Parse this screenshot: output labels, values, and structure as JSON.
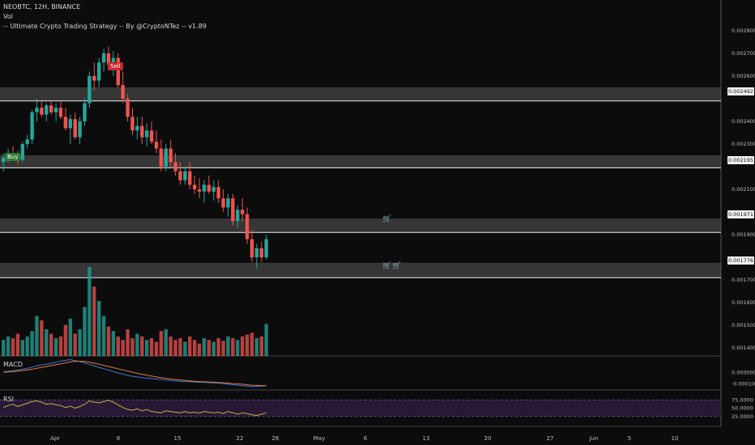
{
  "header": {
    "symbol_line": "NEOBTC, 12H, BINANCE",
    "vol_label": "Vol",
    "strategy_label": "-- Ultimate Crypto Trading Strategy -- By @CryptoNTez -- v1.89"
  },
  "signals": {
    "buy_label": "Buy",
    "sell_label": "Sell"
  },
  "colors": {
    "up": "#26a69a",
    "down": "#ef5350",
    "zone": "#5a5a5a",
    "macd_line": "#3a7bd5",
    "signal_line": "#e07b39",
    "rsi_line": "#c8b040",
    "rsi_band": "#2a1a3a"
  },
  "price_levels": [
    "0.002492",
    "0.002195",
    "0.001971",
    "0.001776"
  ],
  "cart_icons": [
    "cart-icon",
    "cart-icon",
    "cart-icon"
  ],
  "panes": {
    "macd_label": "MACD",
    "rsi_label": "RSI"
  },
  "chart_data": {
    "type": "candlestick",
    "y_ticks": [
      "0.002800",
      "0.002700",
      "0.002600",
      "0.002400",
      "0.002300",
      "0.002100",
      "0.001900",
      "0.001700",
      "0.001600",
      "0.001500",
      "0.001400"
    ],
    "macd_ticks": [
      "0.000000",
      "-0.000100"
    ],
    "rsi_ticks": [
      "75.0000",
      "50.0000",
      "25.0000"
    ],
    "x_labels": [
      "Apr",
      "8",
      "15",
      "22",
      "26",
      "May",
      "6",
      "13",
      "20",
      "27",
      "Jun",
      "5",
      "10"
    ],
    "ylim": [
      0.0014,
      0.0029
    ],
    "zones": [
      [
        0.00249,
        0.00255
      ],
      [
        0.002195,
        0.00225
      ],
      [
        0.00191,
        0.001971
      ],
      [
        0.00171,
        0.001776
      ]
    ],
    "candles": [
      [
        0.00222,
        0.00226,
        0.00218,
        0.00224
      ],
      [
        0.00224,
        0.00228,
        0.00222,
        0.00226
      ],
      [
        0.00226,
        0.00229,
        0.00224,
        0.00225
      ],
      [
        0.00225,
        0.00227,
        0.00221,
        0.00223
      ],
      [
        0.00223,
        0.00231,
        0.00222,
        0.0023
      ],
      [
        0.0023,
        0.00234,
        0.00228,
        0.00232
      ],
      [
        0.00232,
        0.00245,
        0.0023,
        0.00244
      ],
      [
        0.00244,
        0.0025,
        0.0024,
        0.00246
      ],
      [
        0.00246,
        0.00249,
        0.00242,
        0.00243
      ],
      [
        0.00243,
        0.00248,
        0.0024,
        0.00247
      ],
      [
        0.00247,
        0.00249,
        0.00243,
        0.00244
      ],
      [
        0.00244,
        0.00248,
        0.0024,
        0.00246
      ],
      [
        0.00246,
        0.00249,
        0.00241,
        0.00242
      ],
      [
        0.00242,
        0.00246,
        0.00236,
        0.00237
      ],
      [
        0.00237,
        0.00243,
        0.0023,
        0.00241
      ],
      [
        0.00241,
        0.00244,
        0.00232,
        0.00233
      ],
      [
        0.00233,
        0.00242,
        0.0023,
        0.0024
      ],
      [
        0.0024,
        0.0025,
        0.00238,
        0.00248
      ],
      [
        0.00248,
        0.00262,
        0.00246,
        0.0026
      ],
      [
        0.0026,
        0.00266,
        0.00254,
        0.00258
      ],
      [
        0.00258,
        0.00268,
        0.00255,
        0.00266
      ],
      [
        0.00266,
        0.00272,
        0.00262,
        0.0027
      ],
      [
        0.0027,
        0.00273,
        0.00263,
        0.00265
      ],
      [
        0.00265,
        0.00271,
        0.0026,
        0.00268
      ],
      [
        0.00268,
        0.0027,
        0.00255,
        0.00256
      ],
      [
        0.00256,
        0.00262,
        0.00248,
        0.0025
      ],
      [
        0.0025,
        0.00252,
        0.0024,
        0.00242
      ],
      [
        0.00242,
        0.00246,
        0.00234,
        0.00236
      ],
      [
        0.00236,
        0.00242,
        0.00232,
        0.00238
      ],
      [
        0.00238,
        0.00242,
        0.0023,
        0.00233
      ],
      [
        0.00233,
        0.00239,
        0.00229,
        0.00236
      ],
      [
        0.00236,
        0.0024,
        0.0023,
        0.00231
      ],
      [
        0.00231,
        0.00236,
        0.00226,
        0.00228
      ],
      [
        0.00228,
        0.00232,
        0.00218,
        0.0022
      ],
      [
        0.0022,
        0.0023,
        0.00218,
        0.00228
      ],
      [
        0.00228,
        0.00232,
        0.0022,
        0.00222
      ],
      [
        0.00222,
        0.00226,
        0.00216,
        0.00218
      ],
      [
        0.00218,
        0.00222,
        0.00212,
        0.00214
      ],
      [
        0.00214,
        0.0022,
        0.00212,
        0.00218
      ],
      [
        0.00218,
        0.00222,
        0.0021,
        0.00212
      ],
      [
        0.00212,
        0.00216,
        0.00208,
        0.0021
      ],
      [
        0.0021,
        0.00215,
        0.00206,
        0.00209
      ],
      [
        0.00209,
        0.00214,
        0.00204,
        0.00212
      ],
      [
        0.00212,
        0.00216,
        0.00208,
        0.00209
      ],
      [
        0.00209,
        0.00214,
        0.00205,
        0.00211
      ],
      [
        0.00211,
        0.00214,
        0.00204,
        0.00206
      ],
      [
        0.00206,
        0.0021,
        0.002,
        0.00202
      ],
      [
        0.00202,
        0.00208,
        0.00198,
        0.00206
      ],
      [
        0.00206,
        0.00208,
        0.00194,
        0.00196
      ],
      [
        0.00196,
        0.00203,
        0.00193,
        0.00201
      ],
      [
        0.00201,
        0.00206,
        0.00196,
        0.00199
      ],
      [
        0.00199,
        0.00202,
        0.00186,
        0.00188
      ],
      [
        0.00188,
        0.00192,
        0.00178,
        0.0018
      ],
      [
        0.0018,
        0.00186,
        0.00175,
        0.00184
      ],
      [
        0.00184,
        0.00187,
        0.00178,
        0.0018
      ],
      [
        0.0018,
        0.0019,
        0.00179,
        0.00188
      ]
    ],
    "volumes": [
      0.18,
      0.22,
      0.2,
      0.25,
      0.18,
      0.22,
      0.28,
      0.45,
      0.4,
      0.3,
      0.25,
      0.2,
      0.22,
      0.35,
      0.42,
      0.25,
      0.3,
      0.55,
      1.0,
      0.78,
      0.62,
      0.45,
      0.33,
      0.28,
      0.22,
      0.18,
      0.3,
      0.2,
      0.25,
      0.22,
      0.18,
      0.2,
      0.16,
      0.28,
      0.3,
      0.22,
      0.18,
      0.2,
      0.16,
      0.22,
      0.18,
      0.14,
      0.2,
      0.18,
      0.16,
      0.2,
      0.17,
      0.22,
      0.2,
      0.18,
      0.22,
      0.24,
      0.26,
      0.2,
      0.22,
      0.36
    ],
    "macd": [
      5e-06,
      1e-05,
      1.5e-05,
      2e-05,
      2.8e-05,
      3.6e-05,
      4.6e-05,
      5.8e-05,
      6.6e-05,
      7.2e-05,
      8e-05,
      9e-05,
      0.0001,
      0.000106,
      0.000112,
      0.000104,
      9.6e-05,
      8.4e-05,
      7.2e-05,
      5.8e-05,
      4.4e-05,
      3.2e-05,
      2e-05,
      8e-06,
      -4e-06,
      -1.6e-05,
      -2.6e-05,
      -3.4e-05,
      -4e-05,
      -4.6e-05,
      -5e-05,
      -5.4e-05,
      -5.8e-05,
      -6.2e-05,
      -6.6e-05,
      -7e-05,
      -7.4e-05,
      -7.8e-05,
      -8e-05,
      -8.2e-05,
      -8.4e-05,
      -8.6e-05,
      -8.8e-05,
      -9e-05,
      -9.2e-05,
      -9.4e-05,
      -9.8e-05,
      -0.000102,
      -0.000108,
      -0.000112,
      -0.000116,
      -0.00012,
      -0.000124,
      -0.000122,
      -0.00012,
      -0.000116
    ],
    "signal": [
      2e-06,
      4e-06,
      8e-06,
      1.2e-05,
      1.6e-05,
      2.2e-05,
      2.8e-05,
      3.6e-05,
      4.4e-05,
      5.2e-05,
      6e-05,
      6.8e-05,
      7.6e-05,
      8.4e-05,
      9.2e-05,
      9.6e-05,
      9.8e-05,
      9.6e-05,
      9e-05,
      8.2e-05,
      7.2e-05,
      6.2e-05,
      5.2e-05,
      4.2e-05,
      3.2e-05,
      2.2e-05,
      1.2e-05,
      2e-06,
      -8e-06,
      -1.6e-05,
      -2.4e-05,
      -3.2e-05,
      -4e-05,
      -4.6e-05,
      -5.2e-05,
      -5.8e-05,
      -6.2e-05,
      -6.6e-05,
      -7e-05,
      -7.4e-05,
      -7.8e-05,
      -8e-05,
      -8.2e-05,
      -8.4e-05,
      -8.6e-05,
      -8.8e-05,
      -9e-05,
      -9.4e-05,
      -9.8e-05,
      -0.0001,
      -0.000104,
      -0.000108,
      -0.000112,
      -0.000114,
      -0.000116,
      -0.000116
    ],
    "rsi": [
      52,
      58,
      62,
      55,
      60,
      65,
      70,
      72,
      68,
      62,
      64,
      60,
      58,
      52,
      56,
      50,
      55,
      62,
      72,
      68,
      66,
      70,
      74,
      68,
      60,
      52,
      46,
      44,
      48,
      42,
      46,
      40,
      38,
      36,
      42,
      40,
      38,
      36,
      40,
      36,
      38,
      35,
      40,
      38,
      36,
      38,
      34,
      40,
      36,
      32,
      36,
      34,
      30,
      28,
      32,
      36
    ]
  }
}
